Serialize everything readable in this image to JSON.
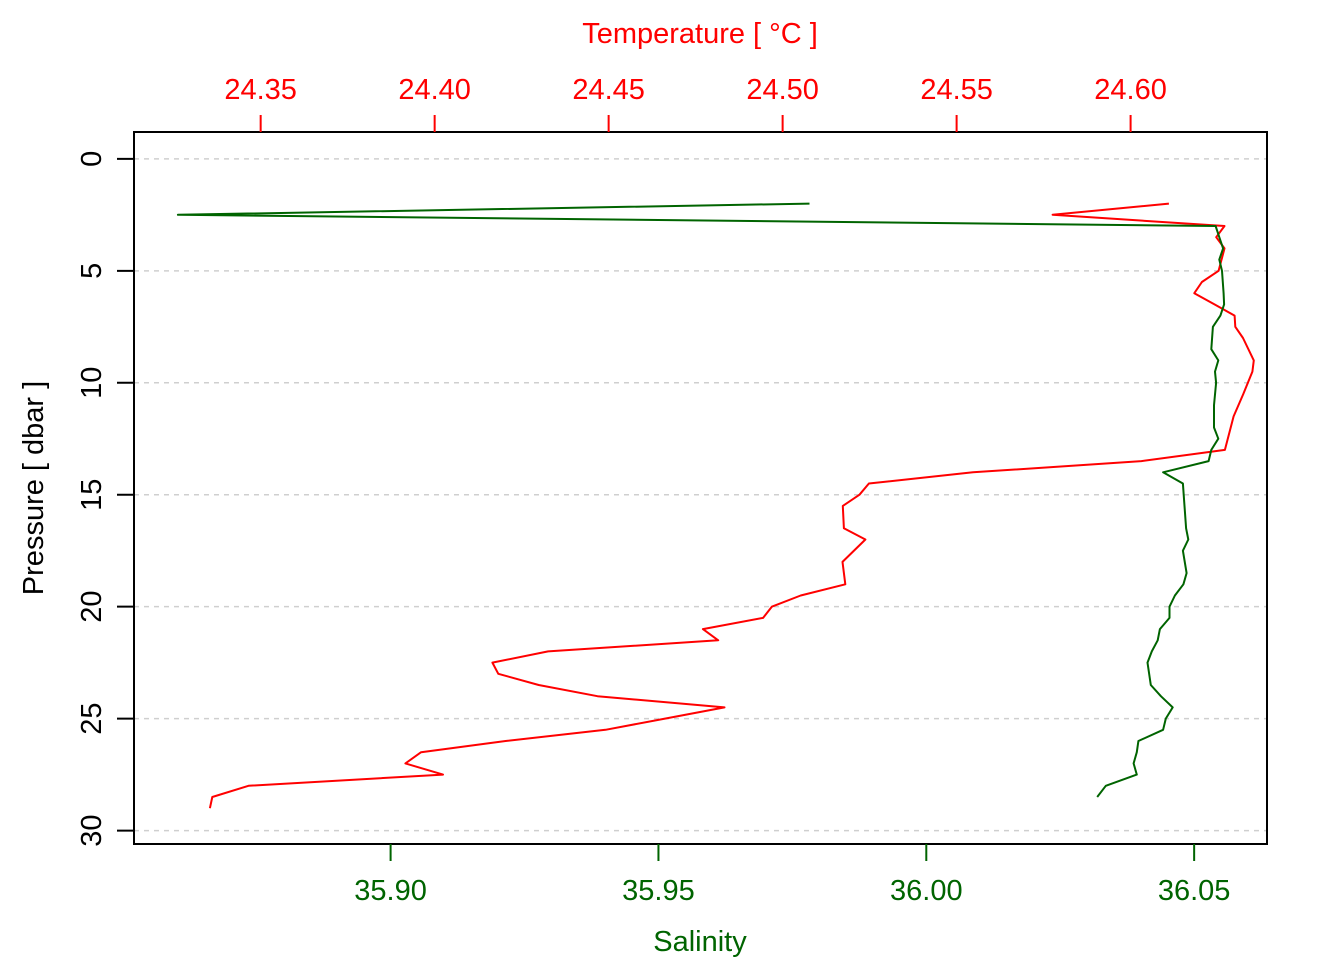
{
  "chart_data": {
    "type": "line",
    "orientation": "profile",
    "y_axis": {
      "label": "Pressure [ dbar ]",
      "range": [
        30.6,
        -1.2
      ],
      "reversed": true,
      "ticks": [
        0,
        5,
        10,
        15,
        20,
        25,
        30
      ],
      "grid": true
    },
    "x_axis_top": {
      "label": "Temperature [ °C ]",
      "color": "#ff0000",
      "range": [
        24.3136,
        24.6392
      ],
      "ticks": [
        "24.35",
        "24.40",
        "24.45",
        "24.50",
        "24.55",
        "24.60"
      ]
    },
    "x_axis_bottom": {
      "label": "Salinity",
      "color": "#006400",
      "range": [
        35.8521,
        36.0636
      ],
      "ticks": [
        "35.90",
        "35.95",
        "36.00",
        "36.05"
      ]
    },
    "series": [
      {
        "quantity": "temperature",
        "axis": "top",
        "color": "#ff0000",
        "points": [
          [
            24.611,
            2.0
          ],
          [
            24.5776,
            2.5
          ],
          [
            24.627,
            3.0
          ],
          [
            24.6246,
            3.5
          ],
          [
            24.627,
            4.0
          ],
          [
            24.6253,
            5.0
          ],
          [
            24.6205,
            5.5
          ],
          [
            24.6183,
            6.0
          ],
          [
            24.6241,
            6.5
          ],
          [
            24.6299,
            7.0
          ],
          [
            24.6301,
            7.5
          ],
          [
            24.6323,
            8.0
          ],
          [
            24.6354,
            9.0
          ],
          [
            24.635,
            9.5
          ],
          [
            24.6324,
            10.5
          ],
          [
            24.6296,
            11.5
          ],
          [
            24.6271,
            13.0
          ],
          [
            24.6031,
            13.5
          ],
          [
            24.5547,
            14.0
          ],
          [
            24.5248,
            14.5
          ],
          [
            24.5221,
            15.0
          ],
          [
            24.5173,
            15.5
          ],
          [
            24.5176,
            16.5
          ],
          [
            24.5238,
            17.0
          ],
          [
            24.5172,
            18.0
          ],
          [
            24.518,
            19.0
          ],
          [
            24.5052,
            19.5
          ],
          [
            24.4969,
            20.0
          ],
          [
            24.4944,
            20.5
          ],
          [
            24.4771,
            21.0
          ],
          [
            24.4815,
            21.5
          ],
          [
            24.4326,
            22.0
          ],
          [
            24.4166,
            22.5
          ],
          [
            24.4183,
            23.0
          ],
          [
            24.4299,
            23.5
          ],
          [
            24.4468,
            24.0
          ],
          [
            24.4833,
            24.5
          ],
          [
            24.4662,
            25.0
          ],
          [
            24.4491,
            25.5
          ],
          [
            24.4204,
            26.0
          ],
          [
            24.3961,
            26.5
          ],
          [
            24.3916,
            27.0
          ],
          [
            24.4024,
            27.5
          ],
          [
            24.3465,
            28.0
          ],
          [
            24.3361,
            28.5
          ],
          [
            24.3354,
            29.0
          ]
        ]
      },
      {
        "quantity": "salinity",
        "axis": "bottom",
        "color": "#006400",
        "points": [
          [
            35.9782,
            2.0
          ],
          [
            35.8603,
            2.5
          ],
          [
            36.054,
            3.0
          ],
          [
            36.0547,
            3.5
          ],
          [
            36.0554,
            4.0
          ],
          [
            36.0547,
            4.5
          ],
          [
            36.0552,
            5.0
          ],
          [
            36.0555,
            6.0
          ],
          [
            36.0556,
            6.5
          ],
          [
            36.0549,
            7.0
          ],
          [
            36.0535,
            7.5
          ],
          [
            36.0532,
            8.5
          ],
          [
            36.0545,
            9.0
          ],
          [
            36.0539,
            9.5
          ],
          [
            36.0541,
            10.0
          ],
          [
            36.0537,
            11.0
          ],
          [
            36.0537,
            12.0
          ],
          [
            36.0545,
            12.5
          ],
          [
            36.0532,
            13.0
          ],
          [
            36.0527,
            13.5
          ],
          [
            36.0442,
            14.0
          ],
          [
            36.0479,
            14.5
          ],
          [
            36.0482,
            15.5
          ],
          [
            36.0485,
            16.5
          ],
          [
            36.0489,
            17.0
          ],
          [
            36.0479,
            17.5
          ],
          [
            36.0486,
            18.5
          ],
          [
            36.048,
            19.0
          ],
          [
            36.0464,
            19.5
          ],
          [
            36.0454,
            20.0
          ],
          [
            36.0454,
            20.5
          ],
          [
            36.0436,
            21.0
          ],
          [
            36.0432,
            21.5
          ],
          [
            36.0421,
            22.0
          ],
          [
            36.0413,
            22.5
          ],
          [
            36.0419,
            23.5
          ],
          [
            36.0438,
            24.0
          ],
          [
            36.046,
            24.5
          ],
          [
            36.0447,
            25.0
          ],
          [
            36.0442,
            25.5
          ],
          [
            36.0396,
            26.0
          ],
          [
            36.0393,
            26.5
          ],
          [
            36.0387,
            27.0
          ],
          [
            36.0393,
            27.5
          ],
          [
            36.0335,
            28.0
          ],
          [
            36.0319,
            28.5
          ]
        ]
      }
    ]
  }
}
